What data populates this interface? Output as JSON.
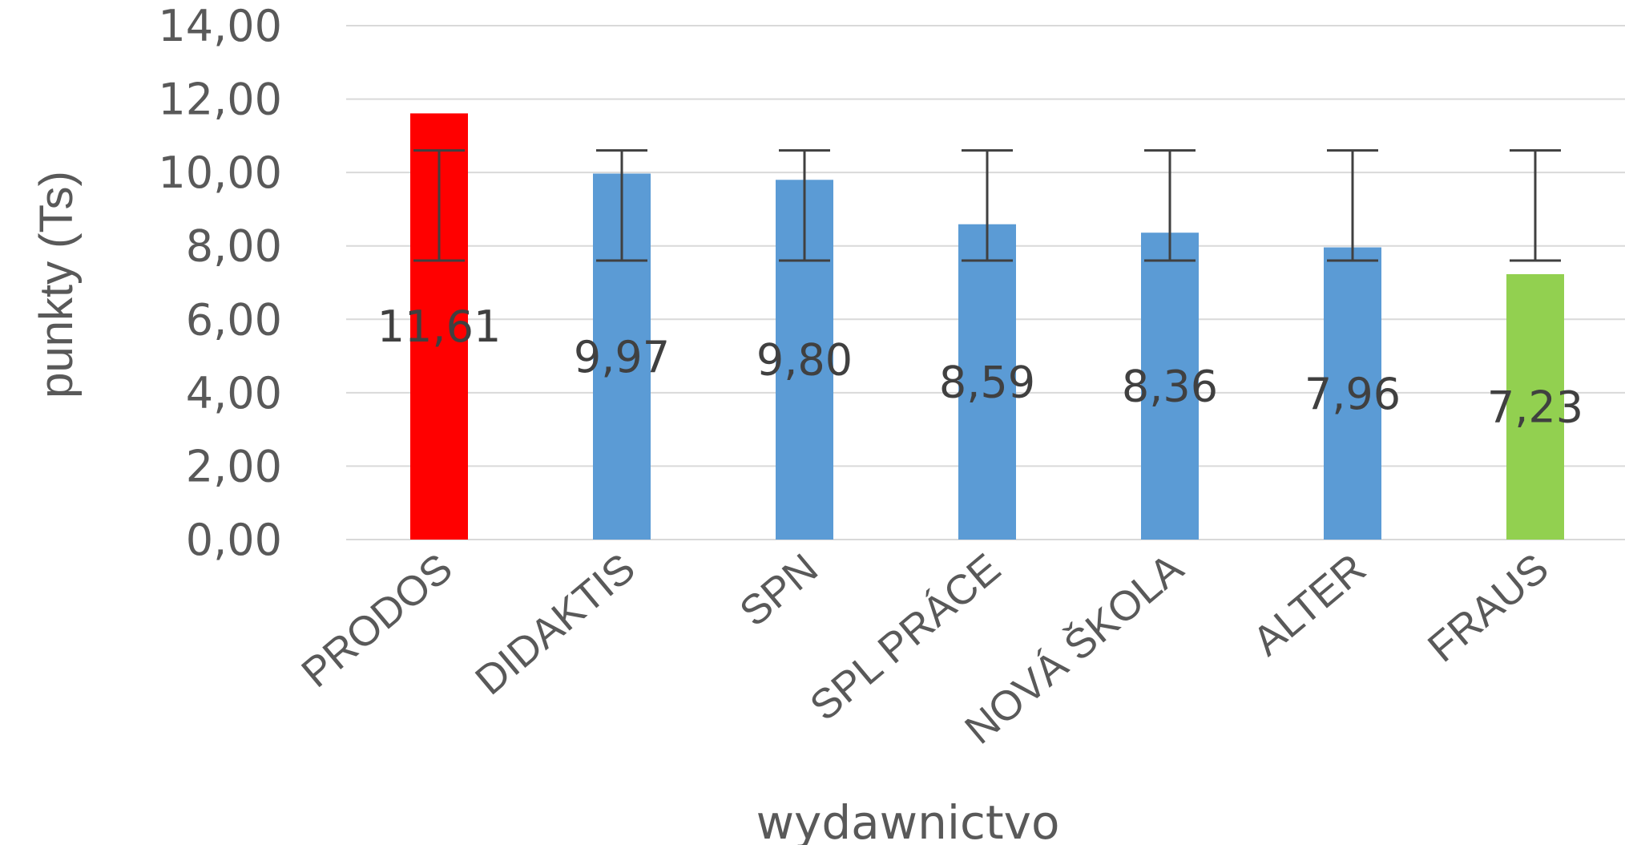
{
  "chart_data": {
    "type": "bar",
    "title": "",
    "xlabel": "wydawnictvo",
    "ylabel": "punkty (Ts)",
    "ylim": [
      0,
      14
    ],
    "yticks": [
      0,
      2,
      4,
      6,
      8,
      10,
      12,
      14
    ],
    "ytick_labels": [
      "0,00",
      "2,00",
      "4,00",
      "6,00",
      "8,00",
      "10,00",
      "12,00",
      "14,00"
    ],
    "grid": true,
    "legend": "none",
    "categories": [
      "PRODOS",
      "DIDAKTIS",
      "SPN",
      "SPL PRÁCE",
      "NOVÁ ŠKOLA",
      "ALTER",
      "FRAUS"
    ],
    "values": [
      11.61,
      9.97,
      9.8,
      8.59,
      8.36,
      7.96,
      7.23
    ],
    "value_labels": [
      "11,61",
      "9,97",
      "9,80",
      "8,59",
      "8,36",
      "7,96",
      "7,23"
    ],
    "bar_colors": [
      "#ff0000",
      "#5b9bd5",
      "#5b9bd5",
      "#5b9bd5",
      "#5b9bd5",
      "#5b9bd5",
      "#92d050"
    ],
    "error_bars": {
      "low": [
        7.6,
        7.6,
        7.6,
        7.6,
        7.6,
        7.6,
        7.6
      ],
      "high": [
        10.6,
        10.6,
        10.6,
        10.6,
        10.6,
        10.6,
        10.6
      ]
    }
  }
}
